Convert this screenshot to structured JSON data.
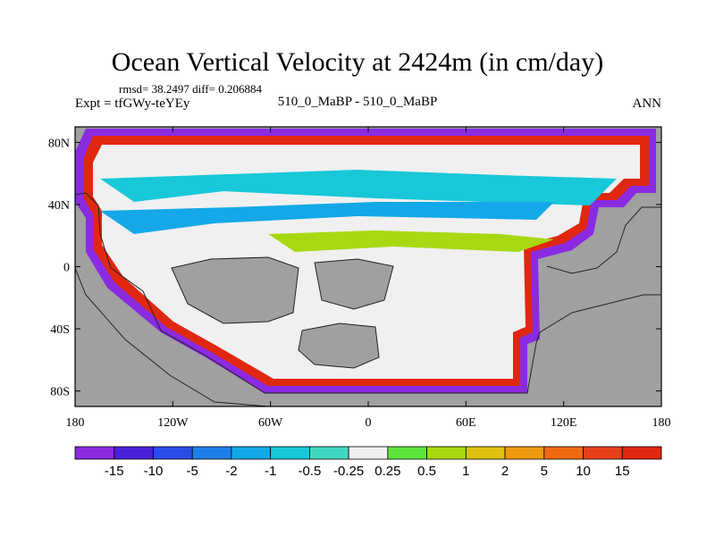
{
  "chart_data": {
    "type": "heatmap",
    "title": "Ocean Vertical Velocity at 2424m (in cm/day)",
    "stats_line": "rmsd= 38.2497 diff= 0.206884",
    "experiment_line": "Expt = tfGWy-teYEy",
    "runs_line": "510_0_MaBP - 510_0_MaBP",
    "season": "ANN",
    "x_axis": {
      "range": [
        -180,
        180
      ],
      "ticks": [
        {
          "value": -180,
          "label": "180"
        },
        {
          "value": -120,
          "label": "120W"
        },
        {
          "value": -60,
          "label": "60W"
        },
        {
          "value": 0,
          "label": "0"
        },
        {
          "value": 60,
          "label": "60E"
        },
        {
          "value": 120,
          "label": "120E"
        },
        {
          "value": 180,
          "label": "180"
        }
      ]
    },
    "y_axis": {
      "range": [
        -90,
        90
      ],
      "ticks": [
        {
          "value": 80,
          "label": "80N"
        },
        {
          "value": 40,
          "label": "40N"
        },
        {
          "value": 0,
          "label": "0"
        },
        {
          "value": -40,
          "label": "40S"
        },
        {
          "value": -80,
          "label": "80S"
        }
      ]
    },
    "colorbar": {
      "labels": [
        "-15",
        "-10",
        "-5",
        "-2",
        "-1",
        "-0.5",
        "-0.25",
        "0.25",
        "0.5",
        "1",
        "2",
        "5",
        "10",
        "15"
      ],
      "colors": [
        "#8a2be2",
        "#4b1fd6",
        "#2a4de8",
        "#1e7ee8",
        "#14a8e8",
        "#18c8d8",
        "#40d8c0",
        "#f0f0f0",
        "#5ee43a",
        "#a8d812",
        "#e0c010",
        "#f09a10",
        "#f06a10",
        "#e8401a",
        "#e02810"
      ]
    },
    "land_color": "#a0a0a0",
    "ocean_neutral_color": "#f0f0f0"
  }
}
